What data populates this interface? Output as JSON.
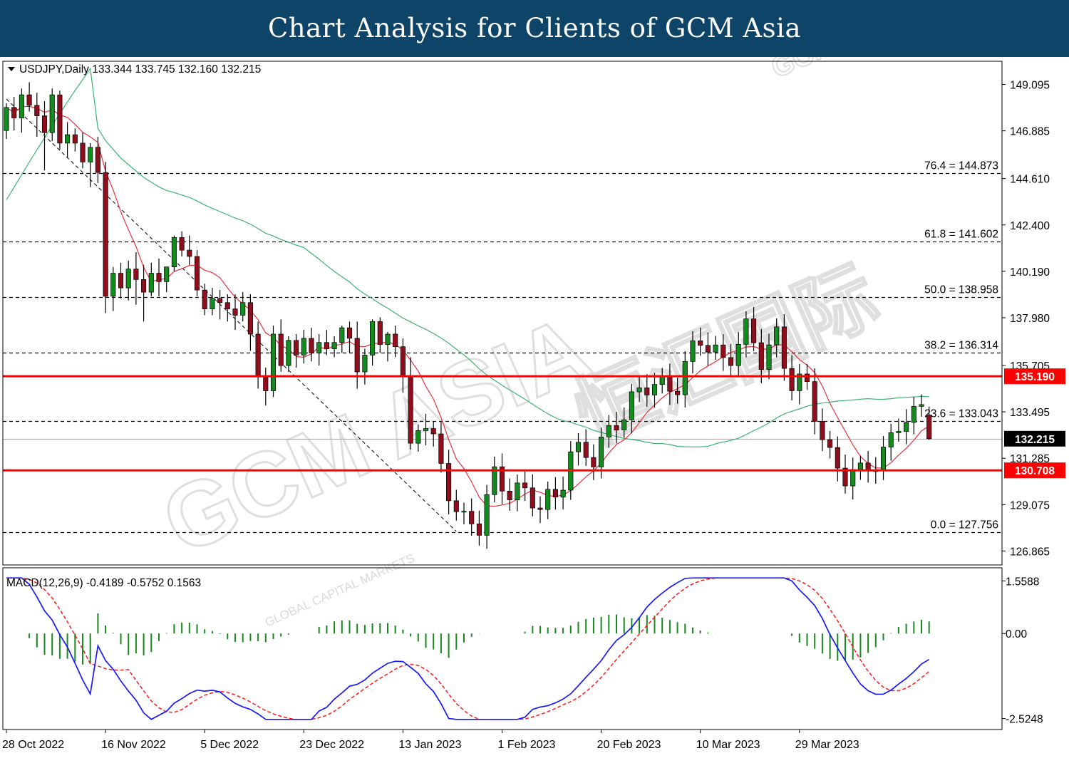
{
  "banner": {
    "title": "Chart Analysis for Clients of GCM Asia"
  },
  "watermark": {
    "brand": "GCM ASIA",
    "chinese": "恒汇国际",
    "sub1": "GLOBAL CAPITAL MARKETS",
    "sub2": "GCM"
  },
  "chart_data": {
    "type": "candlestick",
    "symbol": "USDJPY",
    "timeframe": "Daily",
    "header": "USDJPY,Daily  133.344 133.745 132.160 132.215",
    "ohlc_last": {
      "open": 133.344,
      "high": 133.745,
      "low": 132.16,
      "close": 132.215
    },
    "price_axis": {
      "range": [
        126.2,
        150.2
      ],
      "ticks": [
        "149.095",
        "146.885",
        "144.610",
        "142.400",
        "140.190",
        "137.980",
        "135.705",
        "133.495",
        "131.285",
        "129.075",
        "126.865"
      ]
    },
    "date_labels": [
      {
        "index": 0,
        "label": "28 Oct 2022"
      },
      {
        "index": 13,
        "label": "16 Nov 2022"
      },
      {
        "index": 26,
        "label": "5 Dec 2022"
      },
      {
        "index": 39,
        "label": "23 Dec 2022"
      },
      {
        "index": 52,
        "label": "13 Jan 2023"
      },
      {
        "index": 65,
        "label": "1 Feb 2023"
      },
      {
        "index": 78,
        "label": "20 Feb 2023"
      },
      {
        "index": 91,
        "label": "10 Mar 2023"
      },
      {
        "index": 104,
        "label": "29 Mar 2023"
      }
    ],
    "fibonacci": [
      {
        "label": "76.4 = 144.873",
        "level": 144.873
      },
      {
        "label": "61.8 = 141.602",
        "level": 141.602
      },
      {
        "label": "50.0 = 138.958",
        "level": 138.958
      },
      {
        "label": "38.2 = 136.314",
        "level": 136.314
      },
      {
        "label": "23.6 = 133.043",
        "level": 133.043
      },
      {
        "label": "0.0 = 127.756",
        "level": 127.756
      }
    ],
    "horizontal_lines": [
      {
        "label": "135.190",
        "level": 135.19,
        "color": "#ff0000"
      },
      {
        "label": "130.708",
        "level": 130.708,
        "color": "#ff0000"
      }
    ],
    "current_price": {
      "label": "132.215",
      "level": 132.215
    },
    "trendline": {
      "from": {
        "index": 0,
        "price": 148.4
      },
      "to": {
        "index": 59,
        "price": 127.8
      }
    },
    "moving_averages": [
      {
        "name": "MA fast",
        "color": "#e8323c"
      },
      {
        "name": "MA slow",
        "color": "#3cb371"
      }
    ],
    "candles": [
      [
        146.9,
        148.2,
        146.5,
        148.0
      ],
      [
        148.0,
        148.5,
        146.9,
        147.5
      ],
      [
        147.5,
        148.9,
        146.8,
        148.6
      ],
      [
        148.6,
        149.2,
        147.8,
        148.1
      ],
      [
        148.1,
        148.7,
        146.6,
        147.6
      ],
      [
        147.6,
        148.3,
        145.0,
        146.8
      ],
      [
        146.8,
        148.9,
        146.4,
        148.6
      ],
      [
        148.6,
        148.8,
        146.0,
        146.3
      ],
      [
        146.3,
        147.3,
        145.6,
        146.7
      ],
      [
        146.7,
        147.0,
        145.9,
        146.3
      ],
      [
        146.3,
        146.8,
        145.1,
        145.4
      ],
      [
        145.4,
        146.3,
        144.2,
        146.1
      ],
      [
        146.1,
        146.6,
        144.4,
        144.9
      ],
      [
        144.9,
        145.4,
        138.2,
        139.0
      ],
      [
        139.0,
        140.4,
        138.3,
        140.1
      ],
      [
        140.1,
        140.6,
        138.9,
        139.4
      ],
      [
        139.4,
        140.7,
        138.8,
        140.3
      ],
      [
        140.3,
        141.1,
        138.6,
        139.8
      ],
      [
        139.8,
        140.5,
        137.8,
        139.2
      ],
      [
        139.2,
        140.6,
        139.0,
        140.1
      ],
      [
        140.1,
        140.8,
        139.0,
        139.7
      ],
      [
        139.7,
        140.4,
        139.2,
        140.4
      ],
      [
        140.4,
        141.9,
        140.2,
        141.8
      ],
      [
        141.8,
        142.1,
        140.9,
        141.2
      ],
      [
        141.2,
        141.9,
        140.5,
        140.9
      ],
      [
        140.9,
        141.2,
        139.0,
        139.3
      ],
      [
        139.3,
        139.6,
        138.1,
        138.4
      ],
      [
        138.4,
        139.4,
        138.1,
        138.9
      ],
      [
        138.9,
        139.3,
        137.9,
        138.7
      ],
      [
        138.7,
        139.1,
        137.8,
        138.4
      ],
      [
        138.4,
        139.1,
        137.4,
        138.1
      ],
      [
        138.1,
        139.2,
        137.8,
        138.7
      ],
      [
        138.7,
        139.1,
        136.4,
        137.2
      ],
      [
        137.2,
        137.8,
        134.6,
        135.2
      ],
      [
        135.2,
        135.6,
        133.8,
        134.5
      ],
      [
        134.5,
        137.6,
        134.2,
        137.2
      ],
      [
        137.2,
        137.9,
        135.4,
        135.7
      ],
      [
        135.7,
        137.1,
        135.4,
        136.9
      ],
      [
        136.9,
        137.2,
        135.6,
        136.2
      ],
      [
        136.2,
        137.4,
        135.8,
        137.0
      ],
      [
        137.0,
        137.5,
        135.9,
        136.3
      ],
      [
        136.3,
        137.2,
        135.7,
        136.8
      ],
      [
        136.8,
        137.4,
        136.2,
        136.5
      ],
      [
        136.5,
        137.1,
        136.1,
        136.8
      ],
      [
        136.8,
        137.6,
        136.3,
        137.5
      ],
      [
        137.5,
        137.8,
        136.3,
        137.0
      ],
      [
        137.0,
        137.8,
        134.6,
        135.4
      ],
      [
        135.4,
        136.5,
        134.8,
        136.2
      ],
      [
        136.2,
        137.9,
        135.7,
        137.8
      ],
      [
        137.8,
        138.0,
        136.3,
        136.7
      ],
      [
        136.7,
        137.3,
        135.9,
        137.2
      ],
      [
        137.2,
        137.6,
        136.1,
        136.6
      ],
      [
        136.6,
        137.0,
        134.4,
        135.2
      ],
      [
        135.2,
        136.1,
        131.7,
        132.0
      ],
      [
        132.0,
        132.9,
        131.6,
        132.6
      ],
      [
        132.6,
        133.4,
        131.9,
        132.7
      ]
    ]
  },
  "macd": {
    "label": "MACD(12,26,9) -0.4189 -0.5752 0.1563",
    "range": [
      -2.85,
      1.95
    ],
    "ticks": [
      "1.5588",
      "0.00",
      "-2.5248"
    ]
  }
}
